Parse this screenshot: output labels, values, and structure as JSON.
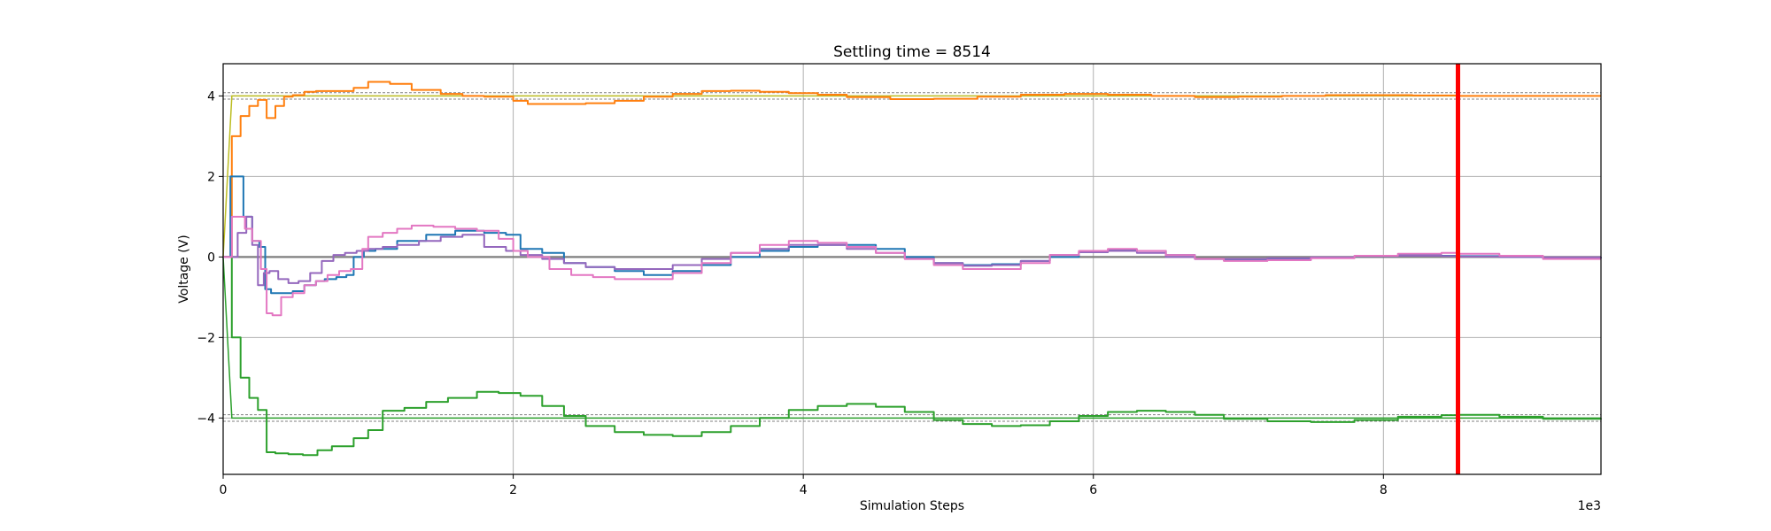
{
  "chart_data": {
    "type": "line",
    "title": "Settling time = 8514",
    "xlabel": "Simulation Steps",
    "ylabel": "Voltage (V)",
    "x_offset_label": "1e3",
    "xlim": [
      0,
      9500
    ],
    "ylim": [
      -5.4,
      4.8
    ],
    "x_ticks": [
      0,
      2000,
      4000,
      6000,
      8000
    ],
    "x_tick_labels": [
      "0",
      "2",
      "4",
      "6",
      "8"
    ],
    "y_ticks": [
      -4,
      -2,
      0,
      2,
      4
    ],
    "y_tick_labels": [
      "−4",
      "−2",
      "0",
      "2",
      "4"
    ],
    "grid": true,
    "settling_time": 8514,
    "tolerance_band": [
      [
        3.92,
        4.08
      ],
      [
        -4.08,
        -3.92
      ]
    ],
    "reference_levels": [
      {
        "y": 4,
        "color": "#bcbd22"
      },
      {
        "y": 0,
        "color": "#7f7f7f"
      },
      {
        "y": -4,
        "color": "#2ca02c"
      }
    ],
    "series": [
      {
        "color": "#ff7f0e",
        "x": [
          0,
          60,
          120,
          180,
          240,
          300,
          360,
          420,
          480,
          560,
          640,
          780,
          900,
          1000,
          1150,
          1300,
          1500,
          1650,
          1800,
          2000,
          2100,
          2300,
          2500,
          2700,
          2900,
          3100,
          3300,
          3500,
          3700,
          3900,
          4100,
          4300,
          4600,
          4900,
          5200,
          5500,
          5800,
          6100,
          6400,
          6700,
          7000,
          7300,
          7600,
          7900,
          8200,
          8514,
          8800,
          9100,
          9500
        ],
        "y": [
          0,
          3.0,
          3.5,
          3.75,
          3.9,
          3.45,
          3.75,
          3.98,
          4.02,
          4.1,
          4.12,
          4.12,
          4.2,
          4.35,
          4.3,
          4.15,
          4.05,
          4.0,
          3.98,
          3.88,
          3.8,
          3.8,
          3.82,
          3.88,
          3.98,
          4.05,
          4.12,
          4.13,
          4.1,
          4.07,
          4.03,
          3.97,
          3.92,
          3.93,
          3.98,
          4.03,
          4.05,
          4.03,
          4.0,
          3.97,
          3.98,
          4.0,
          4.02,
          4.02,
          4.01,
          4.0,
          4.0,
          4.0,
          4.0
        ]
      },
      {
        "color": "#2ca02c",
        "x": [
          0,
          60,
          120,
          180,
          240,
          300,
          360,
          450,
          550,
          650,
          750,
          900,
          1000,
          1100,
          1250,
          1400,
          1550,
          1750,
          1900,
          2050,
          2200,
          2350,
          2500,
          2700,
          2900,
          3100,
          3300,
          3500,
          3700,
          3900,
          4100,
          4300,
          4500,
          4700,
          4900,
          5100,
          5300,
          5500,
          5700,
          5900,
          6100,
          6300,
          6500,
          6700,
          6900,
          7200,
          7500,
          7800,
          8100,
          8400,
          8514,
          8800,
          9100,
          9500
        ],
        "y": [
          0,
          -2.0,
          -3.0,
          -3.5,
          -3.8,
          -4.85,
          -4.88,
          -4.9,
          -4.92,
          -4.8,
          -4.7,
          -4.5,
          -4.3,
          -3.82,
          -3.75,
          -3.6,
          -3.5,
          -3.35,
          -3.38,
          -3.45,
          -3.7,
          -3.95,
          -4.2,
          -4.35,
          -4.42,
          -4.45,
          -4.35,
          -4.2,
          -4.0,
          -3.8,
          -3.7,
          -3.65,
          -3.72,
          -3.85,
          -4.05,
          -4.15,
          -4.2,
          -4.18,
          -4.08,
          -3.95,
          -3.85,
          -3.82,
          -3.85,
          -3.92,
          -4.02,
          -4.08,
          -4.1,
          -4.05,
          -3.97,
          -3.93,
          -3.92,
          -3.97,
          -4.02,
          -4.03
        ]
      },
      {
        "color": "#1f77b4",
        "x": [
          0,
          50,
          80,
          140,
          200,
          250,
          290,
          330,
          400,
          480,
          560,
          640,
          700,
          780,
          850,
          900,
          970,
          1050,
          1200,
          1400,
          1600,
          1800,
          1950,
          2050,
          2200,
          2350,
          2500,
          2700,
          2900,
          3100,
          3300,
          3500,
          3700,
          3900,
          4100,
          4300,
          4500,
          4700,
          4900,
          5100,
          5300,
          5500,
          5700,
          5900,
          6100,
          6300,
          6500,
          6700,
          6900,
          7200,
          7500,
          7800,
          8100,
          8400,
          8514,
          8800,
          9100,
          9500
        ],
        "y": [
          0,
          2.0,
          2.0,
          1.0,
          0.4,
          0.25,
          -0.8,
          -0.9,
          -0.9,
          -0.85,
          -0.7,
          -0.6,
          -0.55,
          -0.5,
          -0.45,
          0,
          0.15,
          0.2,
          0.4,
          0.55,
          0.65,
          0.6,
          0.55,
          0.2,
          0.1,
          -0.15,
          -0.25,
          -0.35,
          -0.45,
          -0.35,
          -0.2,
          0,
          0.15,
          0.25,
          0.3,
          0.3,
          0.2,
          0.0,
          -0.15,
          -0.2,
          -0.18,
          -0.1,
          0.0,
          0.12,
          0.18,
          0.15,
          0.05,
          -0.05,
          -0.08,
          -0.06,
          -0.02,
          0.02,
          0.04,
          0.03,
          0.02,
          0.0,
          -0.02,
          -0.01
        ]
      },
      {
        "color": "#9467bd",
        "x": [
          0,
          60,
          100,
          160,
          200,
          240,
          280,
          320,
          380,
          450,
          520,
          600,
          680,
          760,
          840,
          920,
          1000,
          1100,
          1200,
          1350,
          1500,
          1650,
          1800,
          1950,
          2050,
          2200,
          2350,
          2500,
          2700,
          2900,
          3100,
          3300,
          3500,
          3700,
          3900,
          4100,
          4300,
          4500,
          4700,
          4900,
          5100,
          5300,
          5500,
          5700,
          5900,
          6100,
          6300,
          6500,
          6700,
          6900,
          7200,
          7500,
          7800,
          8100,
          8400,
          8514,
          8800,
          9100,
          9500
        ],
        "y": [
          0,
          0.0,
          0.6,
          1.0,
          0.3,
          -0.7,
          -0.4,
          -0.35,
          -0.55,
          -0.65,
          -0.6,
          -0.4,
          -0.1,
          0.05,
          0.1,
          0.15,
          0.2,
          0.25,
          0.3,
          0.4,
          0.5,
          0.55,
          0.25,
          0.15,
          0.05,
          -0.05,
          -0.15,
          -0.25,
          -0.3,
          -0.3,
          -0.2,
          -0.05,
          0.1,
          0.2,
          0.3,
          0.3,
          0.2,
          0.1,
          -0.05,
          -0.15,
          -0.22,
          -0.2,
          -0.1,
          0.05,
          0.12,
          0.15,
          0.1,
          0.0,
          -0.05,
          -0.05,
          -0.03,
          -0.01,
          0.02,
          0.03,
          0.02,
          0.01,
          0.0,
          -0.01,
          0.0
        ]
      },
      {
        "color": "#e377c2",
        "x": [
          0,
          60,
          100,
          150,
          200,
          260,
          300,
          340,
          400,
          480,
          560,
          640,
          720,
          800,
          880,
          960,
          1000,
          1100,
          1200,
          1300,
          1450,
          1600,
          1750,
          1900,
          2000,
          2100,
          2250,
          2400,
          2550,
          2700,
          2900,
          3100,
          3300,
          3500,
          3700,
          3900,
          4100,
          4300,
          4500,
          4700,
          4900,
          5100,
          5300,
          5500,
          5700,
          5900,
          6100,
          6300,
          6500,
          6700,
          6900,
          7200,
          7500,
          7800,
          8100,
          8400,
          8514,
          8800,
          9100,
          9500
        ],
        "y": [
          0,
          1.0,
          1.0,
          0.7,
          0.4,
          -0.3,
          -1.4,
          -1.45,
          -1.0,
          -0.9,
          -0.7,
          -0.6,
          -0.45,
          -0.35,
          -0.3,
          0.2,
          0.5,
          0.6,
          0.7,
          0.78,
          0.75,
          0.7,
          0.65,
          0.45,
          0.15,
          0.0,
          -0.3,
          -0.45,
          -0.5,
          -0.55,
          -0.55,
          -0.4,
          -0.15,
          0.1,
          0.3,
          0.4,
          0.35,
          0.25,
          0.1,
          -0.05,
          -0.2,
          -0.3,
          -0.3,
          -0.15,
          0.05,
          0.15,
          0.2,
          0.15,
          0.05,
          -0.05,
          -0.1,
          -0.08,
          -0.03,
          0.03,
          0.08,
          0.1,
          0.08,
          0.03,
          -0.05,
          -0.05
        ]
      }
    ],
    "settling_marker": {
      "x": 8514,
      "color": "#ff0000"
    }
  }
}
